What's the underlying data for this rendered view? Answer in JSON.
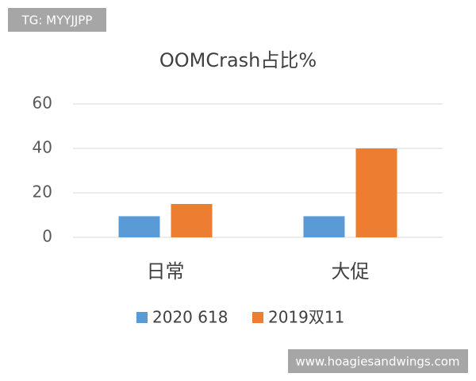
{
  "chart_data": {
    "type": "bar",
    "title": "OOMCrash占比%",
    "categories": [
      "日常",
      "大促"
    ],
    "series": [
      {
        "name": "2020 618",
        "color": "#5b9bd5",
        "values": [
          9.5,
          9.5
        ]
      },
      {
        "name": "2019双11",
        "color": "#ed7d31",
        "values": [
          15,
          40
        ]
      }
    ],
    "ylim": [
      0,
      60
    ],
    "yticks": [
      0,
      20,
      40,
      60
    ],
    "grid": true,
    "legend": "bottom",
    "annotations": [
      "TG: MYYJJPP",
      "www.hoagiesandwings.com"
    ]
  }
}
